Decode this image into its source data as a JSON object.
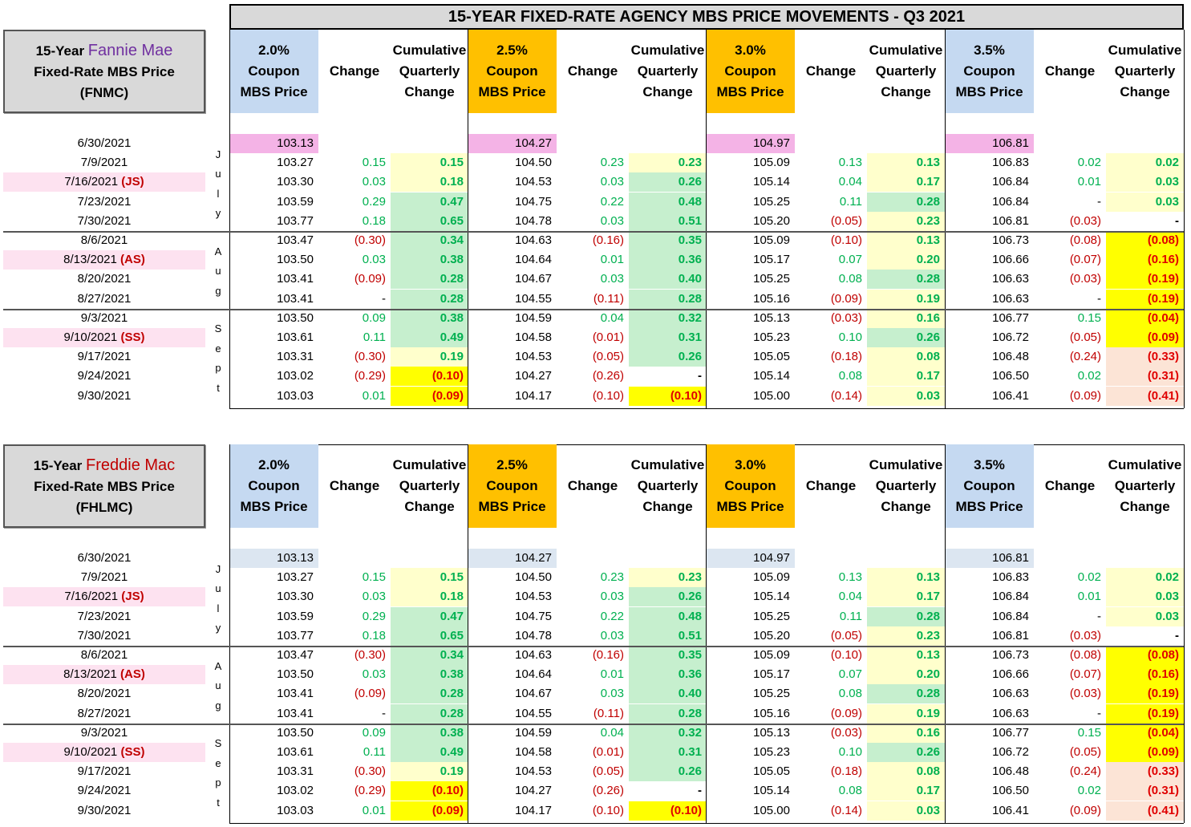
{
  "title": "15-YEAR FIXED-RATE AGENCY MBS PRICE MOVEMENTS - Q3 2021",
  "colors": {
    "coupon_blue": "#c5d9f1",
    "coupon_orange": "#ffc000",
    "start_pink": "#f4b3e6",
    "start_blue": "#dce6f1",
    "date_pink": "#fde2f0",
    "cum_light_yellow": "#ffffcc",
    "cum_green": "#c6efce",
    "cum_yellow": "#ffff00",
    "cum_peach": "#fce4d6",
    "positive_green": "#00b050",
    "negative_red": "#c00000"
  },
  "months": {
    "jul": "July",
    "aug": "Aug",
    "sep": "Sept"
  },
  "coupon_headers": [
    {
      "rate": "2.0%",
      "l2": "Coupon",
      "l3": "MBS Price",
      "color": "blue"
    },
    {
      "rate": "2.5%",
      "l2": "Coupon",
      "l3": "MBS Price",
      "color": "orange"
    },
    {
      "rate": "3.0%",
      "l2": "Coupon",
      "l3": "MBS Price",
      "color": "orange"
    },
    {
      "rate": "3.5%",
      "l2": "Coupon",
      "l3": "MBS Price",
      "color": "blue"
    }
  ],
  "change_header": "Change",
  "cum_header": {
    "l1": "Cumulative",
    "l2": "Quarterly",
    "l3": "Change"
  },
  "dates": [
    {
      "date": "6/30/2021",
      "special": ""
    },
    {
      "date": "7/9/2021",
      "special": ""
    },
    {
      "date": "7/16/2021",
      "special": "(JS)"
    },
    {
      "date": "7/23/2021",
      "special": ""
    },
    {
      "date": "7/30/2021",
      "special": ""
    },
    {
      "date": "8/6/2021",
      "special": ""
    },
    {
      "date": "8/13/2021",
      "special": "(AS)"
    },
    {
      "date": "8/20/2021",
      "special": ""
    },
    {
      "date": "8/27/2021",
      "special": ""
    },
    {
      "date": "9/3/2021",
      "special": ""
    },
    {
      "date": "9/10/2021",
      "special": "(SS)"
    },
    {
      "date": "9/17/2021",
      "special": ""
    },
    {
      "date": "9/24/2021",
      "special": ""
    },
    {
      "date": "9/30/2021",
      "special": ""
    }
  ],
  "coupons": [
    {
      "price": [
        "103.13",
        "103.27",
        "103.30",
        "103.59",
        "103.77",
        "103.47",
        "103.50",
        "103.41",
        "103.41",
        "103.50",
        "103.61",
        "103.31",
        "103.02",
        "103.03"
      ],
      "change": [
        "",
        "0.15",
        "0.03",
        "0.29",
        "0.18",
        "(0.30)",
        "0.03",
        "(0.09)",
        "-",
        "0.09",
        "0.11",
        "(0.30)",
        "(0.29)",
        "0.01"
      ],
      "cum": [
        "",
        "0.15",
        "0.18",
        "0.47",
        "0.65",
        "0.34",
        "0.38",
        "0.28",
        "0.28",
        "0.38",
        "0.49",
        "0.19",
        "(0.10)",
        "(0.09)"
      ],
      "cum_bg": [
        "",
        "ly",
        "ly",
        "g",
        "g",
        "g",
        "g",
        "g",
        "g",
        "g",
        "g",
        "ly",
        "y",
        "y"
      ]
    },
    {
      "price": [
        "104.27",
        "104.50",
        "104.53",
        "104.75",
        "104.78",
        "104.63",
        "104.64",
        "104.67",
        "104.55",
        "104.59",
        "104.58",
        "104.53",
        "104.27",
        "104.17"
      ],
      "change": [
        "",
        "0.23",
        "0.03",
        "0.22",
        "0.03",
        "(0.16)",
        "0.01",
        "0.03",
        "(0.11)",
        "0.04",
        "(0.01)",
        "(0.05)",
        "(0.26)",
        "(0.10)"
      ],
      "cum": [
        "",
        "0.23",
        "0.26",
        "0.48",
        "0.51",
        "0.35",
        "0.36",
        "0.40",
        "0.28",
        "0.32",
        "0.31",
        "0.26",
        "-",
        "(0.10)"
      ],
      "cum_bg": [
        "",
        "ly",
        "g",
        "g",
        "g",
        "g",
        "g",
        "g",
        "g",
        "g",
        "g",
        "g",
        "",
        "y"
      ]
    },
    {
      "price": [
        "104.97",
        "105.09",
        "105.14",
        "105.25",
        "105.20",
        "105.09",
        "105.17",
        "105.25",
        "105.16",
        "105.13",
        "105.23",
        "105.05",
        "105.14",
        "105.00"
      ],
      "change": [
        "",
        "0.13",
        "0.04",
        "0.11",
        "(0.05)",
        "(0.10)",
        "0.07",
        "0.08",
        "(0.09)",
        "(0.03)",
        "0.10",
        "(0.18)",
        "0.08",
        "(0.14)"
      ],
      "cum": [
        "",
        "0.13",
        "0.17",
        "0.28",
        "0.23",
        "0.13",
        "0.20",
        "0.28",
        "0.19",
        "0.16",
        "0.26",
        "0.08",
        "0.17",
        "0.03"
      ],
      "cum_bg": [
        "",
        "ly",
        "ly",
        "g",
        "ly",
        "ly",
        "ly",
        "g",
        "ly",
        "ly",
        "g",
        "ly",
        "ly",
        "ly"
      ]
    },
    {
      "price": [
        "106.81",
        "106.83",
        "106.84",
        "106.84",
        "106.81",
        "106.73",
        "106.66",
        "106.63",
        "106.63",
        "106.77",
        "106.72",
        "106.48",
        "106.50",
        "106.41"
      ],
      "change": [
        "",
        "0.02",
        "0.01",
        "-",
        "(0.03)",
        "(0.08)",
        "(0.07)",
        "(0.03)",
        "-",
        "0.15",
        "(0.05)",
        "(0.24)",
        "0.02",
        "(0.09)"
      ],
      "cum": [
        "",
        "0.02",
        "0.03",
        "0.03",
        "-",
        "(0.08)",
        "(0.16)",
        "(0.19)",
        "(0.19)",
        "(0.04)",
        "(0.09)",
        "(0.33)",
        "(0.31)",
        "(0.41)"
      ],
      "cum_bg": [
        "",
        "ly",
        "ly",
        "ly",
        "",
        "y",
        "y",
        "y",
        "y",
        "y",
        "y",
        "p",
        "p",
        "p"
      ]
    }
  ],
  "sections": [
    {
      "label_prefix": "15-Year ",
      "agency": "Fannie Mae",
      "agency_color": "#7030a0",
      "line2": "Fixed-Rate MBS Price",
      "line3": "(FNMC)",
      "start_bg": "#f4b3e6"
    },
    {
      "label_prefix": "15-Year ",
      "agency": "Freddie Mac",
      "agency_color": "#c00000",
      "line2": "Fixed-Rate MBS Price",
      "line3": "(FHLMC)",
      "start_bg": "#dce6f1"
    }
  ]
}
